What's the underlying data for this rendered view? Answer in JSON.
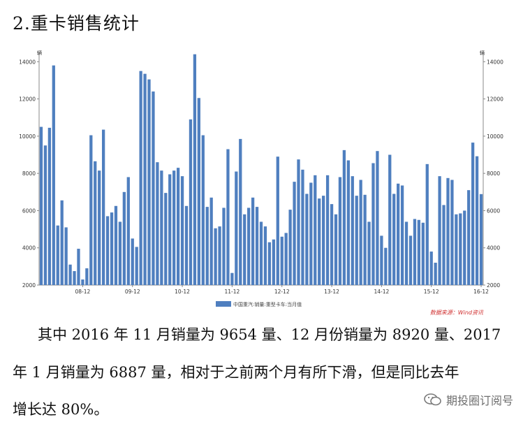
{
  "heading": "2.重卡销售统计",
  "paragraph": {
    "line1": "其中 2016 年 11 月销量为 9654 量、12 月份销量为 8920 量、2017",
    "line2": "年 1 月销量为 6887 量，相对于之前两个月有所下滑，但是同比去年",
    "line3": "增长达 80%。"
  },
  "watermark": {
    "text": "期投圈订阅号",
    "icon": "wechat-icon"
  },
  "chart_data": {
    "type": "bar",
    "left_unit": "辆",
    "right_unit": "辆",
    "ylim": [
      2000,
      14500
    ],
    "yticks": [
      "2000",
      "4000",
      "6000",
      "8000",
      "10000",
      "12000",
      "14000"
    ],
    "x_tick_labels": [
      "08-12",
      "09-12",
      "10-12",
      "11-12",
      "12-12",
      "13-12",
      "14-12",
      "15-12",
      "16-12"
    ],
    "x_tick_index": [
      10,
      22,
      34,
      46,
      58,
      70,
      82,
      94,
      106
    ],
    "legend": "中国重汽:销量:重型卡车:当月值",
    "source": "数据来源：Wind资讯",
    "bar_color": "#4f7fbf",
    "values": [
      10500,
      9500,
      10450,
      13800,
      5200,
      6550,
      5100,
      3100,
      2750,
      3950,
      2300,
      2900,
      10050,
      8650,
      8150,
      10350,
      5700,
      5900,
      6250,
      5400,
      7000,
      7800,
      4500,
      4050,
      13500,
      13350,
      13050,
      12400,
      8600,
      8150,
      6950,
      7950,
      8150,
      8300,
      7850,
      6250,
      10900,
      14400,
      12050,
      10050,
      6200,
      6700,
      5050,
      5150,
      6150,
      9300,
      2650,
      8100,
      9850,
      5800,
      6150,
      6700,
      6200,
      5400,
      5150,
      4300,
      4450,
      8900,
      4600,
      4800,
      6050,
      7550,
      8750,
      8200,
      6900,
      7500,
      7900,
      6650,
      6800,
      7900,
      6350,
      5800,
      7800,
      9250,
      8700,
      7850,
      6800,
      7650,
      6850,
      5400,
      8550,
      9200,
      4650,
      4000,
      9000,
      6900,
      7450,
      7350,
      5400,
      4650,
      5550,
      5500,
      5350,
      8500,
      3800,
      3200,
      7850,
      6300,
      7750,
      7650,
      5800,
      5850,
      6000,
      7100,
      9654,
      8920,
      6887
    ]
  }
}
